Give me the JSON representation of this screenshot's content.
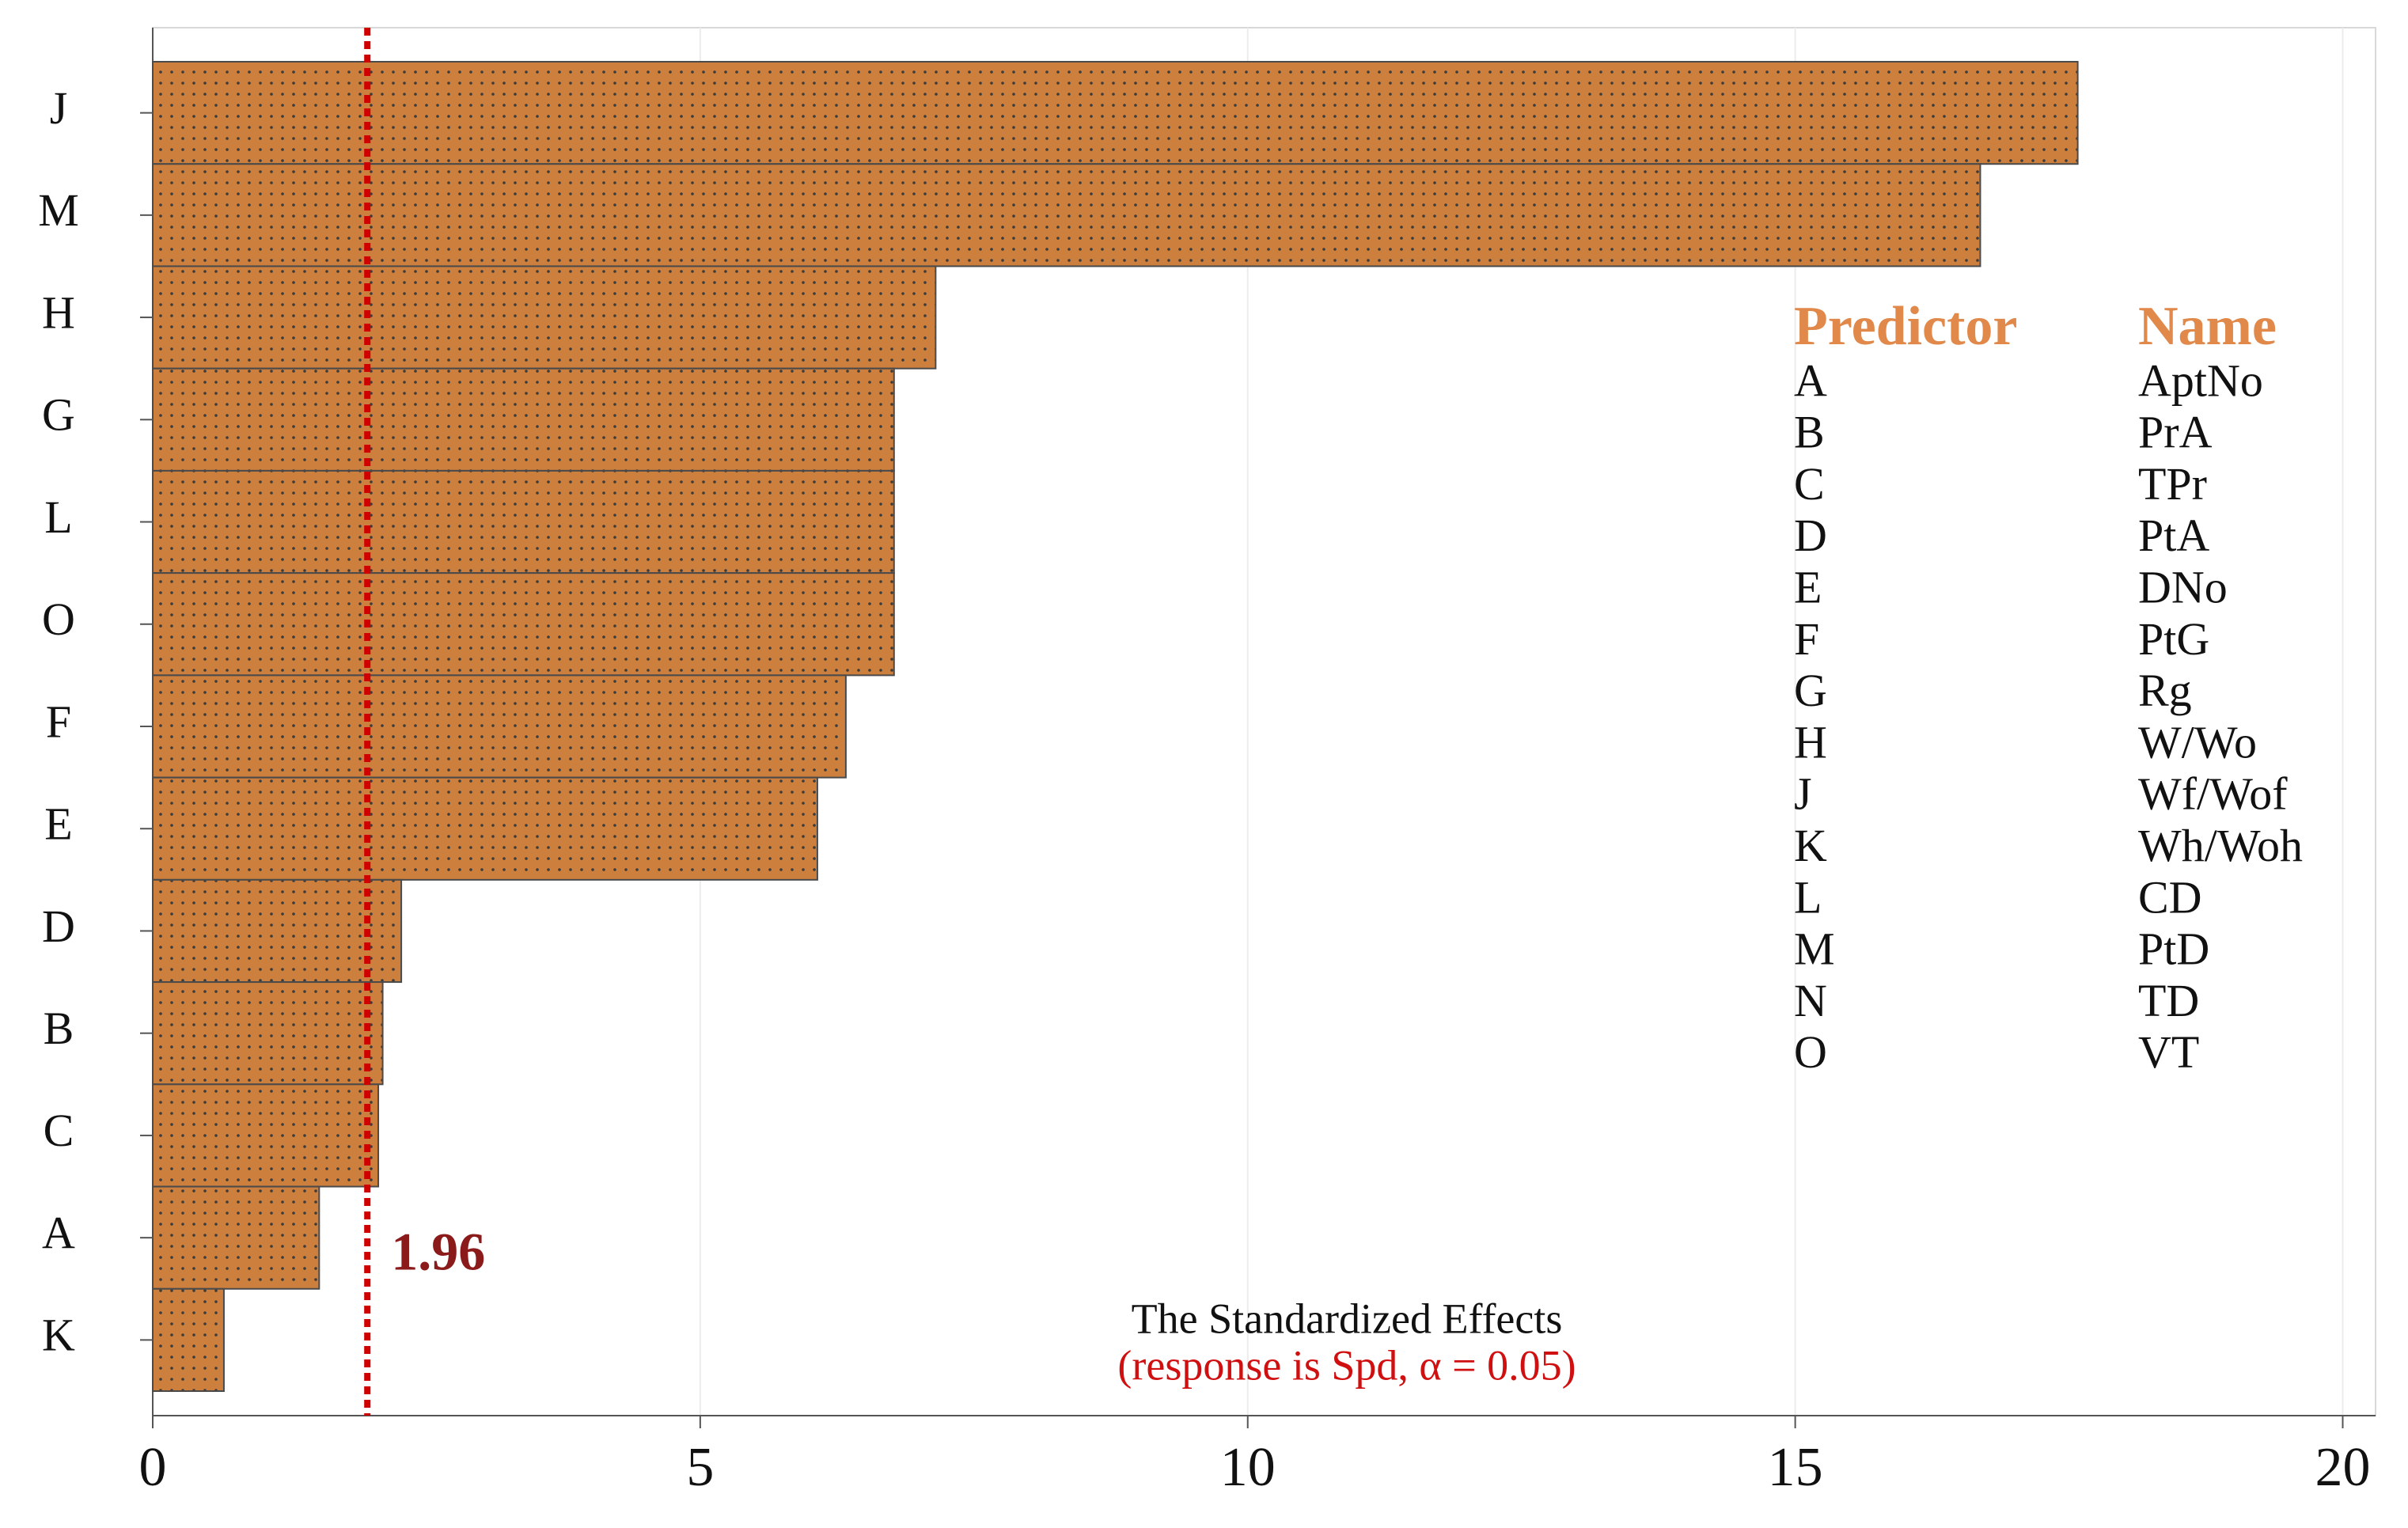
{
  "chart_data": {
    "type": "bar",
    "orientation": "horizontal",
    "categories": [
      "J",
      "M",
      "H",
      "G",
      "L",
      "O",
      "F",
      "E",
      "D",
      "B",
      "C",
      "A",
      "K"
    ],
    "values": [
      17.58,
      16.69,
      7.15,
      6.77,
      6.77,
      6.77,
      6.33,
      6.07,
      2.27,
      2.1,
      2.06,
      1.52,
      0.65
    ],
    "color": "#cd7f3e",
    "xlim": [
      0,
      20.3
    ],
    "xticks": [
      0,
      5,
      10,
      15,
      20
    ],
    "grid": true,
    "reference_line": {
      "value": 1.96,
      "color": "#d00000",
      "label_color": "#8b1a1a"
    },
    "annotations": [
      {
        "text": "The Standardized Effects",
        "color": "#111111"
      },
      {
        "text": "(response is Spd, α = 0.05)",
        "color": "#d01010"
      }
    ],
    "legend_table": {
      "headers": [
        "Predictor",
        "Name"
      ],
      "header_color": "#e0894a",
      "rows": [
        [
          "A",
          "AptNo"
        ],
        [
          "B",
          "PrA"
        ],
        [
          "C",
          "TPr"
        ],
        [
          "D",
          "PtA"
        ],
        [
          "E",
          "DNo"
        ],
        [
          "F",
          "PtG"
        ],
        [
          "G",
          "Rg"
        ],
        [
          "H",
          "W/Wo"
        ],
        [
          "J",
          "Wf/Wof"
        ],
        [
          "K",
          "Wh/Woh"
        ],
        [
          "L",
          "CD"
        ],
        [
          "M",
          "PtD"
        ],
        [
          "N",
          "TD"
        ],
        [
          "O",
          "VT"
        ]
      ]
    }
  }
}
